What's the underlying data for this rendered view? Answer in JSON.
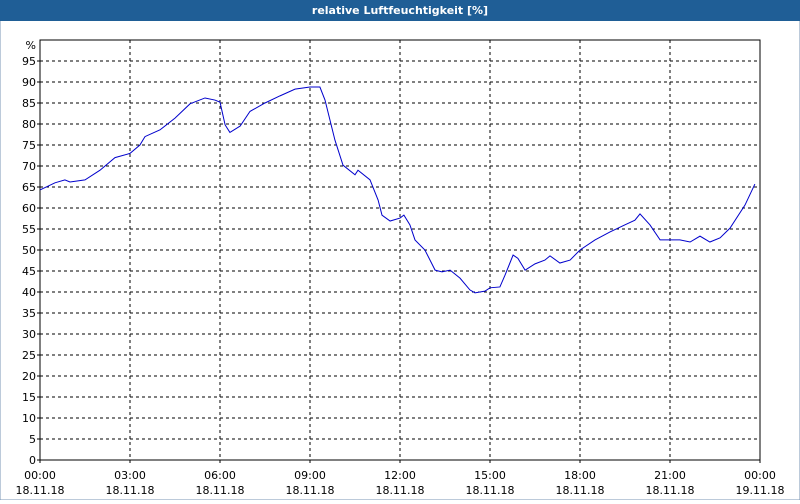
{
  "chart_data": {
    "type": "line",
    "title": "relative Luftfeuchtigkeit [%]",
    "y_unit": "%",
    "x": [
      0,
      0.5,
      0.83,
      1,
      1.5,
      2,
      2.5,
      3,
      3.33,
      3.5,
      4,
      4.5,
      5,
      5.5,
      5.83,
      6,
      6.17,
      6.33,
      6.67,
      7,
      7.5,
      8,
      8.5,
      9,
      9.33,
      9.5,
      9.83,
      10.1,
      10.5,
      10.6,
      11,
      11.27,
      11.4,
      11.67,
      12,
      12.13,
      12.33,
      12.5,
      12.83,
      13.17,
      13.4,
      13.67,
      14,
      14.33,
      14.5,
      14.83,
      15,
      15.33,
      15.5,
      15.77,
      15.93,
      16.17,
      16.5,
      16.83,
      17,
      17.33,
      17.67,
      18,
      18.5,
      19,
      19.5,
      19.83,
      20,
      20.33,
      20.67,
      21,
      21.33,
      21.67,
      22,
      22.33,
      22.67,
      23,
      23.5,
      23.83
    ],
    "series": [
      {
        "name": "relative Luftfeuchtigkeit",
        "color": "#0000cc",
        "values": [
          64.3,
          66,
          66.7,
          66.2,
          66.7,
          69,
          72,
          73,
          75,
          77,
          78.6,
          81.4,
          84.8,
          86.2,
          85.7,
          85.2,
          79.8,
          78,
          79.5,
          83,
          85,
          86.7,
          88.3,
          88.8,
          88.8,
          85.7,
          76.2,
          70.2,
          67.9,
          69,
          66.7,
          61.9,
          58.3,
          56.9,
          57.6,
          58.3,
          56,
          52.4,
          50,
          45.2,
          44.8,
          45.2,
          43.3,
          40.5,
          39.8,
          40.2,
          41,
          41.2,
          44,
          48.8,
          48,
          45.2,
          46.7,
          47.6,
          48.6,
          46.9,
          47.6,
          50,
          52.4,
          54.3,
          56,
          57.1,
          58.6,
          56,
          52.4,
          52.4,
          52.4,
          51.9,
          53.3,
          51.9,
          52.9,
          55.2,
          60.7,
          65.7
        ]
      }
    ],
    "xlim": [
      0,
      24
    ],
    "xticks": [
      {
        "value": 0,
        "label": "00:00"
      },
      {
        "value": 3,
        "label": "03:00"
      },
      {
        "value": 6,
        "label": "06:00"
      },
      {
        "value": 9,
        "label": "09:00"
      },
      {
        "value": 12,
        "label": "12:00"
      },
      {
        "value": 15,
        "label": "15:00"
      },
      {
        "value": 18,
        "label": "18:00"
      },
      {
        "value": 21,
        "label": "21:00"
      },
      {
        "value": 24,
        "label": "00:00"
      }
    ],
    "xtick_dates": [
      "18.11.18",
      "18.11.18",
      "18.11.18",
      "18.11.18",
      "18.11.18",
      "18.11.18",
      "18.11.18",
      "18.11.18",
      "19.11.18"
    ],
    "ylim": [
      0,
      100
    ],
    "yticks": [
      0,
      5,
      10,
      15,
      20,
      25,
      30,
      35,
      40,
      45,
      50,
      55,
      60,
      65,
      70,
      75,
      80,
      85,
      90,
      95
    ],
    "grid": true
  }
}
